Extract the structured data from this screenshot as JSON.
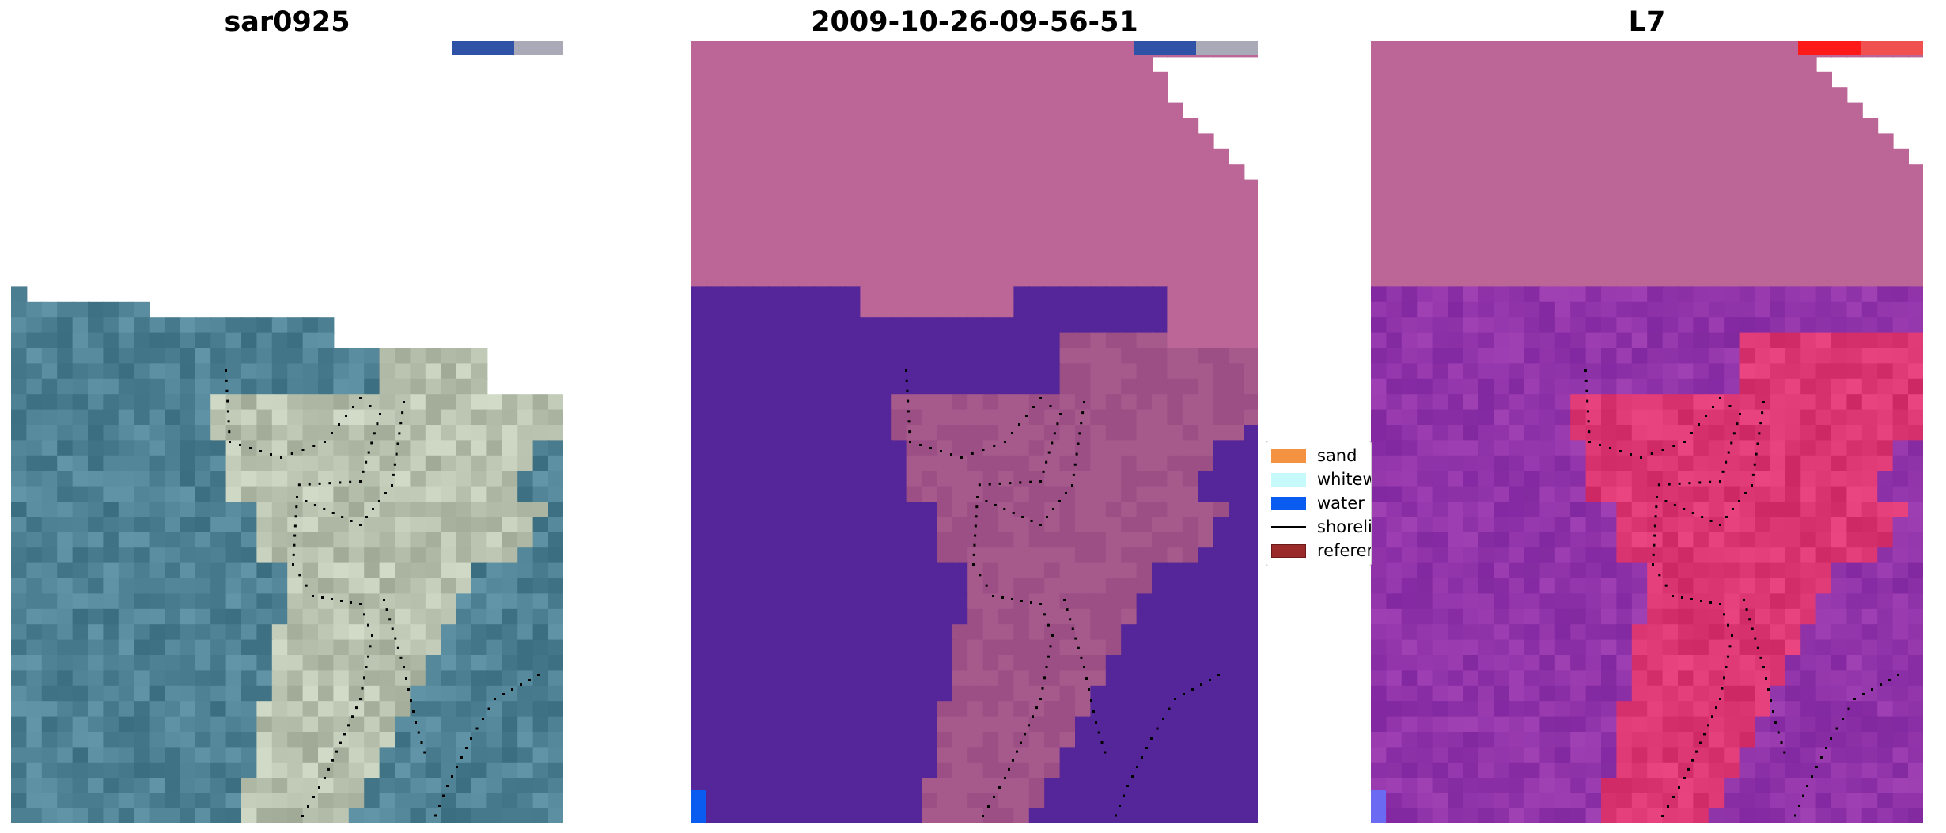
{
  "panels": [
    {
      "title": "sar0925",
      "colormap": "rgb-natural"
    },
    {
      "title": "2009-10-26-09-56-51",
      "colormap": "classified"
    },
    {
      "title": "L7",
      "colormap": "magenta-red"
    }
  ],
  "legend": {
    "items": [
      {
        "label": "sand",
        "type": "patch",
        "color": "#f39240"
      },
      {
        "label": "whitewater",
        "type": "patch",
        "color": "#c6f9f9"
      },
      {
        "label": "water",
        "type": "patch",
        "color": "#0a5cf0"
      },
      {
        "label": "shoreline",
        "type": "line",
        "color": "#000000"
      },
      {
        "label": "reference",
        "type": "patch",
        "color": "#9b2a2a"
      }
    ]
  },
  "colors": {
    "background": "#ffffff",
    "classified_sand": "#bc6697",
    "classified_water": "#542699",
    "shoreline_dots": "#000000"
  }
}
